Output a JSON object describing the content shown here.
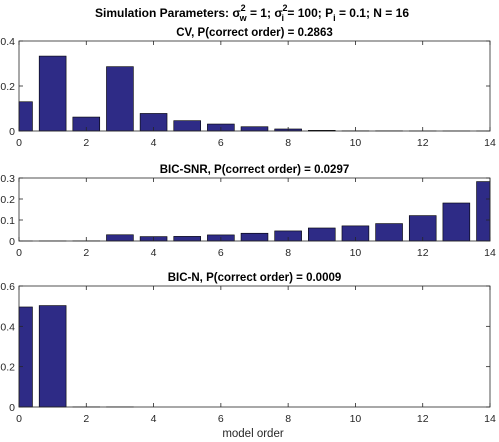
{
  "figure": {
    "suptitle": {
      "prefix": "Simulation Parameters: ",
      "sigma": "σ",
      "sup2": "2",
      "sub_w": "w",
      "eq_w": " = 1; ",
      "sub_i": "i",
      "eq_i": " = 100; P",
      "sub_pi": "i",
      "rest": " = 0.1; N = 16"
    },
    "xlabel": "model order"
  },
  "chart_data": [
    {
      "type": "bar",
      "title": "CV, P(correct order) = 0.2863",
      "x": [
        0,
        1,
        2,
        3,
        4,
        5,
        6,
        7,
        8,
        9,
        10,
        11,
        12,
        13,
        14
      ],
      "values": [
        0.13,
        0.333,
        0.062,
        0.286,
        0.078,
        0.046,
        0.031,
        0.019,
        0.009,
        0.003,
        0.001,
        0.001,
        0.0005,
        0.0003,
        0.0003
      ],
      "xlim": [
        0,
        14
      ],
      "ylim": [
        0,
        0.4
      ],
      "xticks": [
        0,
        2,
        4,
        6,
        8,
        10,
        12,
        14
      ],
      "yticks": [
        0,
        0.2,
        0.4
      ],
      "color": "#2e2b86"
    },
    {
      "type": "bar",
      "title": "BIC-SNR, P(correct order) = 0.0297",
      "x": [
        0,
        1,
        2,
        3,
        4,
        5,
        6,
        7,
        8,
        9,
        10,
        11,
        12,
        13,
        14
      ],
      "values": [
        0.0003,
        0.0005,
        0.001,
        0.0297,
        0.021,
        0.022,
        0.029,
        0.037,
        0.048,
        0.062,
        0.072,
        0.083,
        0.121,
        0.181,
        0.283
      ],
      "xlim": [
        0,
        14
      ],
      "ylim": [
        0,
        0.3
      ],
      "xticks": [
        0,
        2,
        4,
        6,
        8,
        10,
        12,
        14
      ],
      "yticks": [
        0,
        0.1,
        0.2,
        0.3
      ],
      "color": "#2e2b86"
    },
    {
      "type": "bar",
      "title": "BIC-N, P(correct order) = 0.0009",
      "x": [
        0,
        1,
        2,
        3,
        4,
        5,
        6,
        7,
        8,
        9,
        10,
        11,
        12,
        13,
        14
      ],
      "values": [
        0.496,
        0.503,
        0.0009,
        0.0009,
        0,
        0,
        0,
        0,
        0,
        0,
        0,
        0,
        0,
        0,
        0
      ],
      "xlim": [
        0,
        14
      ],
      "ylim": [
        0,
        0.6
      ],
      "xticks": [
        0,
        2,
        4,
        6,
        8,
        10,
        12,
        14
      ],
      "yticks": [
        0,
        0.2,
        0.4,
        0.6
      ],
      "color": "#2e2b86"
    }
  ]
}
